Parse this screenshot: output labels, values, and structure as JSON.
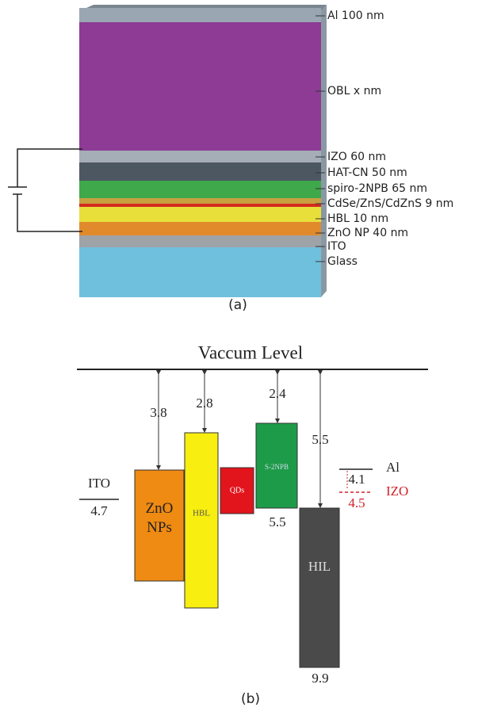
{
  "panel_a": {
    "layers": [
      "Al 100 nm",
      "OBL x nm",
      "IZO 60 nm",
      "HAT-CN 50 nm",
      "spiro-2NPB 65 nm",
      "CdSe/ZnS/CdZnS 9 nm",
      "HBL 10 nm",
      "ZnO NP 40 nm",
      "ITO",
      "Glass"
    ],
    "caption": "(a)"
  },
  "panel_b": {
    "title": "Vaccum Level",
    "blocks": [
      "ZnO NPs",
      "HBL",
      "QDs",
      "S-2NPB",
      "HIL"
    ],
    "electrodes": [
      "ITO",
      "Al",
      "IZO"
    ],
    "levels": {
      "zno_cb": 3.8,
      "hbl_cb": 2.8,
      "npb_homo_top": 2.4,
      "hil_top": 5.5,
      "npb_bottom": 5.5,
      "hil_bottom": 9.9,
      "ito": 4.7,
      "al": 4.1,
      "izo": 4.5
    },
    "caption": "(b)"
  }
}
